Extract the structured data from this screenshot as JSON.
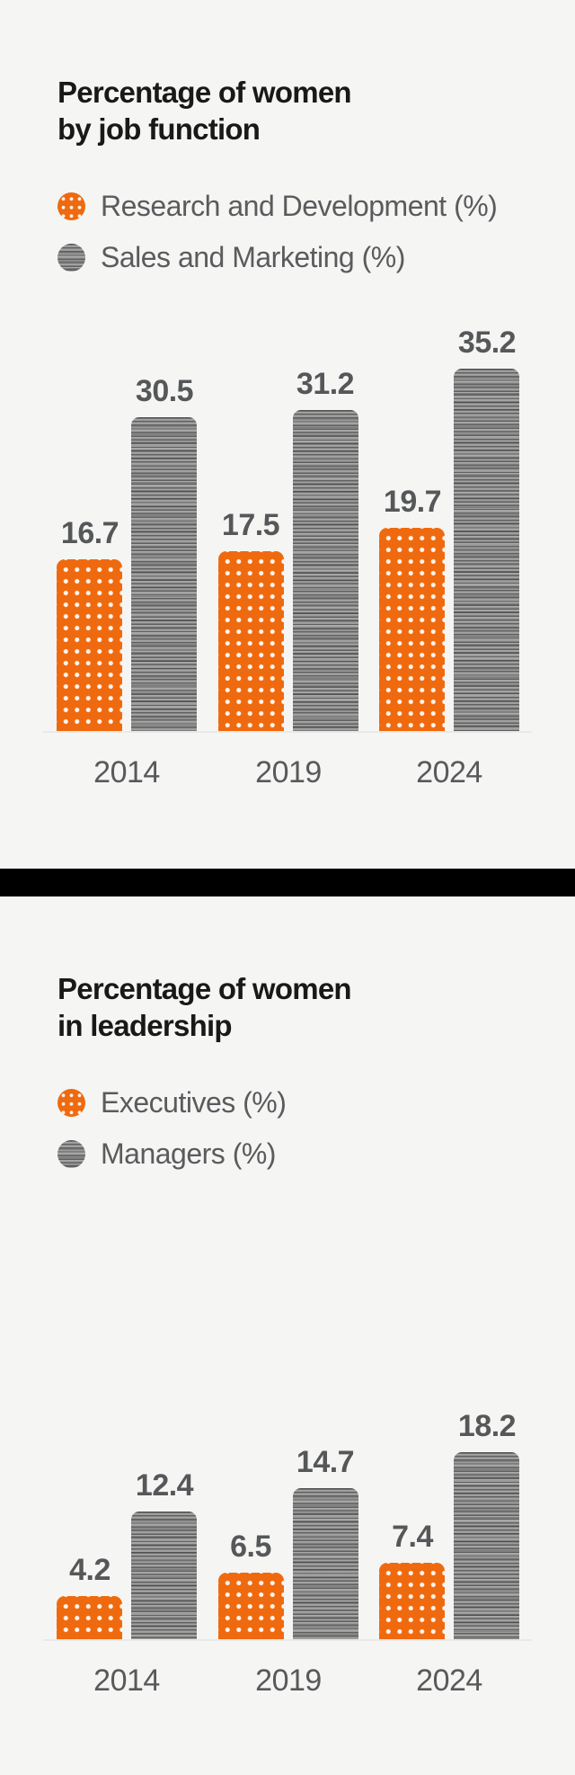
{
  "page": {
    "background": "#f5f5f4",
    "divider_color": "#000000",
    "accent_orange": "#ef6a0f",
    "accent_gray": "#9b9b9b",
    "title_color": "#191919",
    "label_color": "#58595b"
  },
  "charts": [
    {
      "title_lines": [
        "Percentage of women",
        "by job function"
      ],
      "legend": [
        {
          "label": "Research and Development (%)",
          "swatch": "orange-dots"
        },
        {
          "label": "Sales and Marketing (%)",
          "swatch": "gray-stripes"
        }
      ]
    },
    {
      "title_lines": [
        "Percentage of women",
        "in leadership"
      ],
      "legend": [
        {
          "label": "Executives (%)",
          "swatch": "orange-dots"
        },
        {
          "label": "Managers (%)",
          "swatch": "gray-stripes"
        }
      ]
    }
  ],
  "chart_data": [
    {
      "type": "bar",
      "title": "Percentage of women by job function",
      "categories": [
        "2014",
        "2019",
        "2024"
      ],
      "series": [
        {
          "name": "Research and Development (%)",
          "key": "rd",
          "color": "#ef6a0f",
          "pattern": "dots",
          "values": [
            16.7,
            17.5,
            19.7
          ],
          "labels": [
            "16.7",
            "17.5",
            "19.7"
          ]
        },
        {
          "name": "Sales and Marketing (%)",
          "key": "sm",
          "color": "#9b9b9b",
          "pattern": "stripes",
          "values": [
            30.5,
            31.2,
            35.2
          ],
          "labels": [
            "30.5",
            "31.2",
            "35.2"
          ]
        }
      ],
      "ylim": [
        0,
        36
      ],
      "grid": false,
      "value_labels_shown": true,
      "legend_position": "top-left"
    },
    {
      "type": "bar",
      "title": "Percentage of women in leadership",
      "categories": [
        "2014",
        "2019",
        "2024"
      ],
      "series": [
        {
          "name": "Executives (%)",
          "key": "exec",
          "color": "#ef6a0f",
          "pattern": "dots",
          "values": [
            4.2,
            6.5,
            7.4
          ],
          "labels": [
            "4.2",
            "6.5",
            "7.4"
          ]
        },
        {
          "name": "Managers (%)",
          "key": "mgr",
          "color": "#9b9b9b",
          "pattern": "stripes",
          "values": [
            12.4,
            14.7,
            18.2
          ],
          "labels": [
            "12.4",
            "14.7",
            "18.2"
          ]
        }
      ],
      "ylim": [
        0,
        36
      ],
      "grid": false,
      "value_labels_shown": true,
      "legend_position": "top-left"
    }
  ]
}
